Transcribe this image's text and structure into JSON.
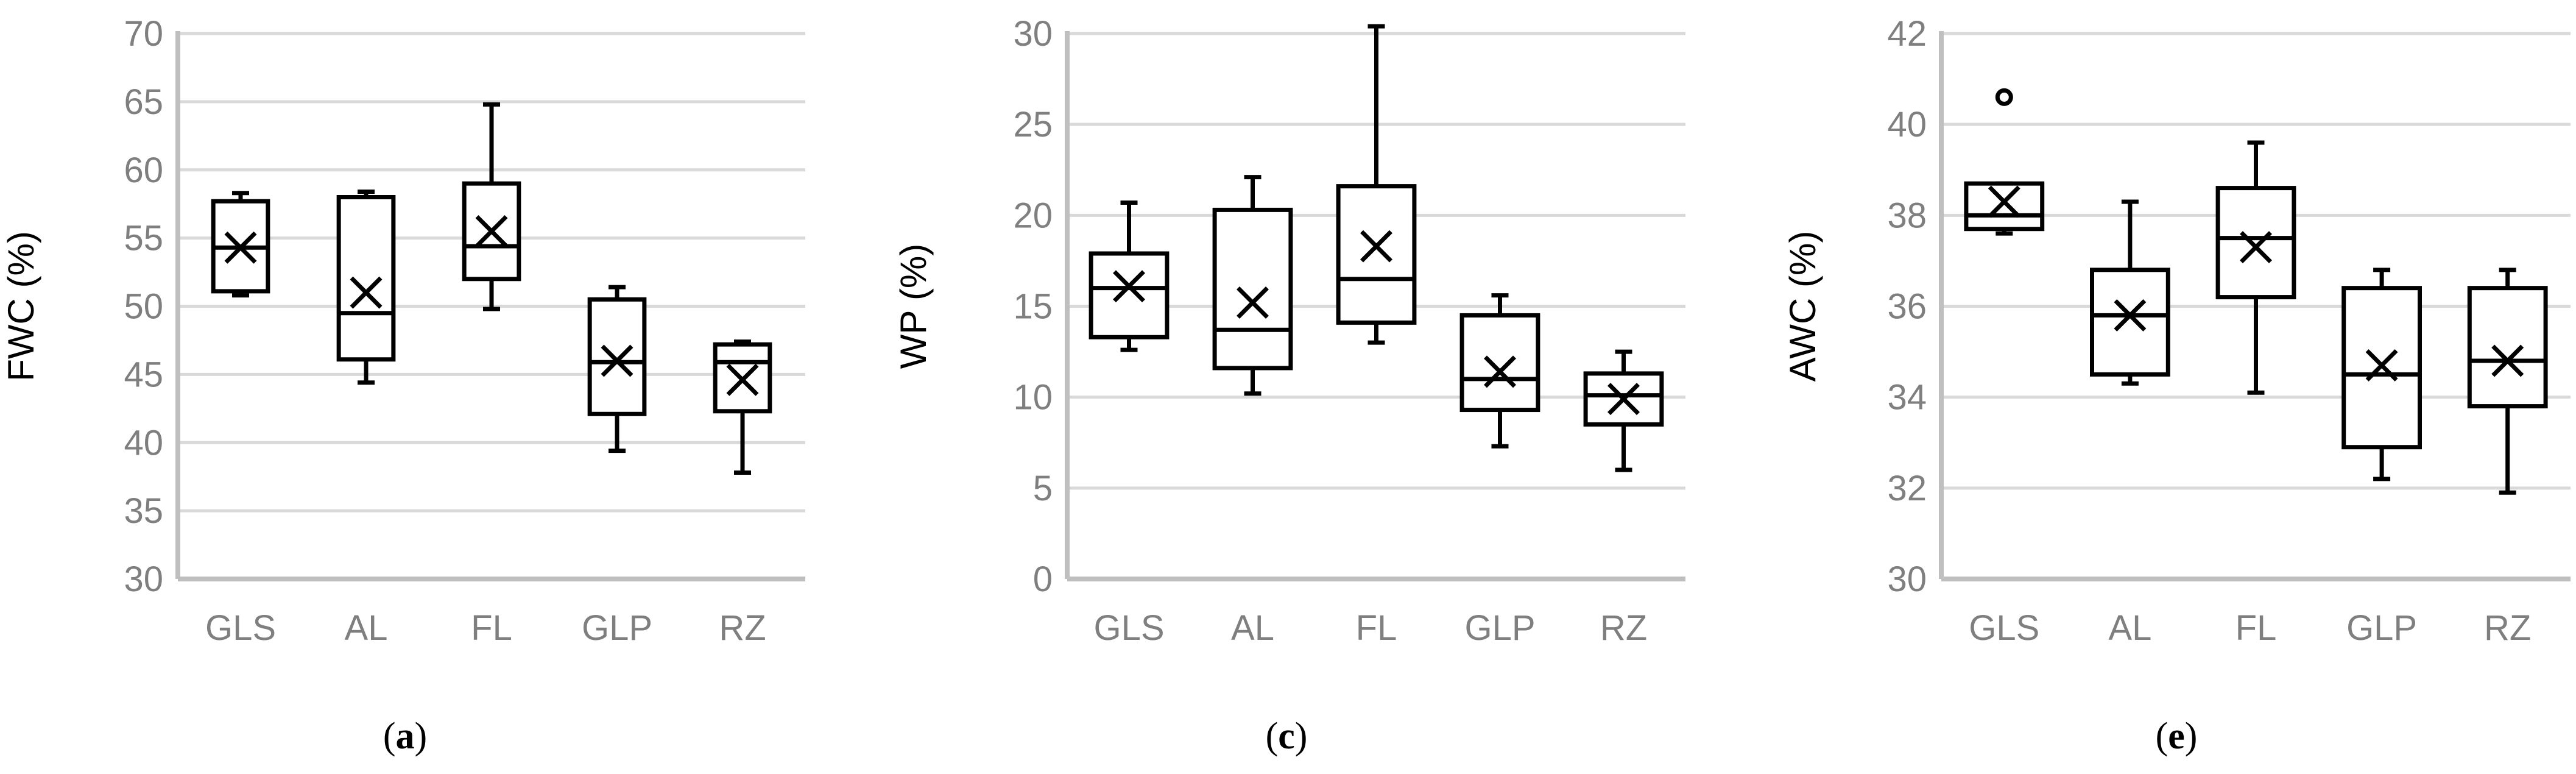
{
  "chart_data": [
    {
      "type": "box",
      "panel": "a",
      "caption": "a",
      "ylabel": "FWC (%)",
      "ylim": [
        30,
        70
      ],
      "yticks": [
        30,
        35,
        40,
        45,
        50,
        55,
        60,
        65,
        70
      ],
      "grid": true,
      "categories": [
        "GLS",
        "AL",
        "FL",
        "GLP",
        "RZ"
      ],
      "boxes": [
        {
          "min": 50.8,
          "q1": 51.1,
          "median": 54.3,
          "q3": 57.7,
          "max": 58.3,
          "mean": 54.3,
          "outliers": []
        },
        {
          "min": 44.4,
          "q1": 46.1,
          "median": 49.5,
          "q3": 58.0,
          "max": 58.4,
          "mean": 51.0,
          "outliers": []
        },
        {
          "min": 49.8,
          "q1": 52.0,
          "median": 54.4,
          "q3": 59.0,
          "max": 64.8,
          "mean": 55.5,
          "outliers": []
        },
        {
          "min": 39.4,
          "q1": 42.1,
          "median": 45.9,
          "q3": 50.5,
          "max": 51.4,
          "mean": 46.0,
          "outliers": []
        },
        {
          "min": 37.8,
          "q1": 42.3,
          "median": 45.9,
          "q3": 47.2,
          "max": 47.4,
          "mean": 44.6,
          "outliers": []
        }
      ]
    },
    {
      "type": "box",
      "panel": "c",
      "caption": "c",
      "ylabel": "WP (%)",
      "ylim": [
        0,
        30
      ],
      "yticks": [
        0,
        5,
        10,
        15,
        20,
        25,
        30
      ],
      "grid": true,
      "categories": [
        "GLS",
        "AL",
        "FL",
        "GLP",
        "RZ"
      ],
      "boxes": [
        {
          "min": 12.6,
          "q1": 13.3,
          "median": 16.0,
          "q3": 17.9,
          "max": 20.7,
          "mean": 16.1,
          "outliers": []
        },
        {
          "min": 10.2,
          "q1": 11.6,
          "median": 13.7,
          "q3": 20.3,
          "max": 22.1,
          "mean": 15.2,
          "outliers": []
        },
        {
          "min": 13.0,
          "q1": 14.1,
          "median": 16.5,
          "q3": 21.6,
          "max": 30.4,
          "mean": 18.3,
          "outliers": []
        },
        {
          "min": 7.3,
          "q1": 9.3,
          "median": 11.0,
          "q3": 14.5,
          "max": 15.6,
          "mean": 11.4,
          "outliers": []
        },
        {
          "min": 6.0,
          "q1": 8.5,
          "median": 10.1,
          "q3": 11.3,
          "max": 12.5,
          "mean": 9.9,
          "outliers": []
        }
      ]
    },
    {
      "type": "box",
      "panel": "e",
      "caption": "e",
      "ylabel": "AWC (%)",
      "ylim": [
        30,
        42
      ],
      "yticks": [
        30,
        32,
        34,
        36,
        38,
        40,
        42
      ],
      "grid": true,
      "categories": [
        "GLS",
        "AL",
        "FL",
        "GLP",
        "RZ"
      ],
      "boxes": [
        {
          "min": 37.6,
          "q1": 37.7,
          "median": 38.0,
          "q3": 38.7,
          "max": 38.7,
          "mean": 38.3,
          "outliers": [
            40.6
          ]
        },
        {
          "min": 34.3,
          "q1": 34.5,
          "median": 35.8,
          "q3": 36.8,
          "max": 38.3,
          "mean": 35.8,
          "outliers": []
        },
        {
          "min": 34.1,
          "q1": 36.2,
          "median": 37.5,
          "q3": 38.6,
          "max": 39.6,
          "mean": 37.3,
          "outliers": []
        },
        {
          "min": 32.2,
          "q1": 32.9,
          "median": 34.5,
          "q3": 36.4,
          "max": 36.8,
          "mean": 34.7,
          "outliers": []
        },
        {
          "min": 31.9,
          "q1": 33.8,
          "median": 34.8,
          "q3": 36.4,
          "max": 36.8,
          "mean": 34.8,
          "outliers": []
        }
      ]
    }
  ]
}
